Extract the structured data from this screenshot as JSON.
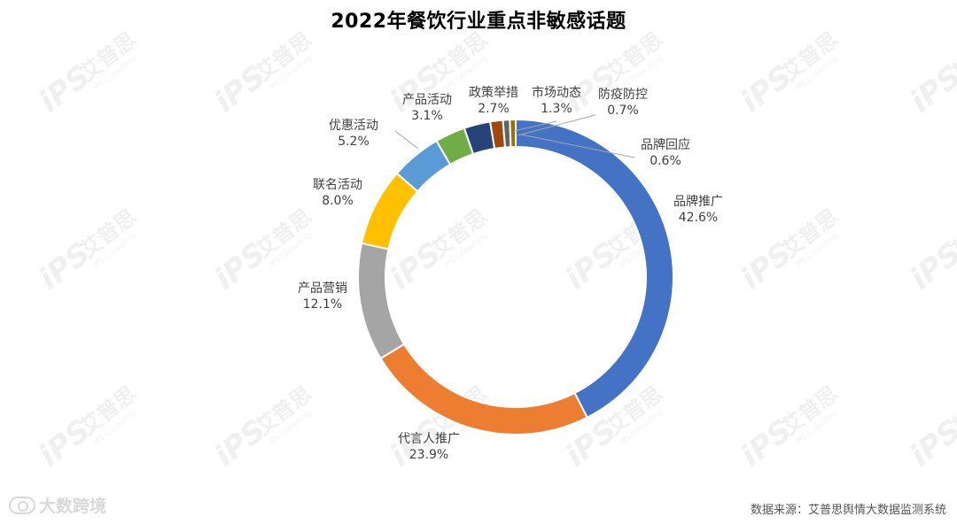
{
  "title": "2022年餐饮行业重点非敏感话题",
  "source": "数据来源：艾普思舆情大数据监测系统",
  "watermark": {
    "logo": "iPS",
    "cn": "艾普思",
    "en": "IPS Consulting"
  },
  "brand": {
    "text": "大数跨境"
  },
  "chart_data": {
    "type": "pie",
    "donut": true,
    "title": "2022年餐饮行业重点非敏感话题",
    "unit": "%",
    "slices": [
      {
        "label": "品牌推广",
        "value": 42.6,
        "display": "42.6%",
        "color": "#4472C4"
      },
      {
        "label": "代言人推广",
        "value": 23.9,
        "display": "23.9%",
        "color": "#ED7D31"
      },
      {
        "label": "产品营销",
        "value": 12.1,
        "display": "12.1%",
        "color": "#A5A5A5"
      },
      {
        "label": "联名活动",
        "value": 8.0,
        "display": "8.0%",
        "color": "#FFC000"
      },
      {
        "label": "优惠活动",
        "value": 5.2,
        "display": "5.2%",
        "color": "#5B9BD5"
      },
      {
        "label": "产品活动",
        "value": 3.1,
        "display": "3.1%",
        "color": "#70AD47"
      },
      {
        "label": "政策举措",
        "value": 2.7,
        "display": "2.7%",
        "color": "#264478"
      },
      {
        "label": "市场动态",
        "value": 1.3,
        "display": "1.3%",
        "color": "#9E480E"
      },
      {
        "label": "防疫防控",
        "value": 0.7,
        "display": "0.7%",
        "color": "#636363"
      },
      {
        "label": "品牌回应",
        "value": 0.6,
        "display": "0.6%",
        "color": "#997300"
      }
    ]
  }
}
